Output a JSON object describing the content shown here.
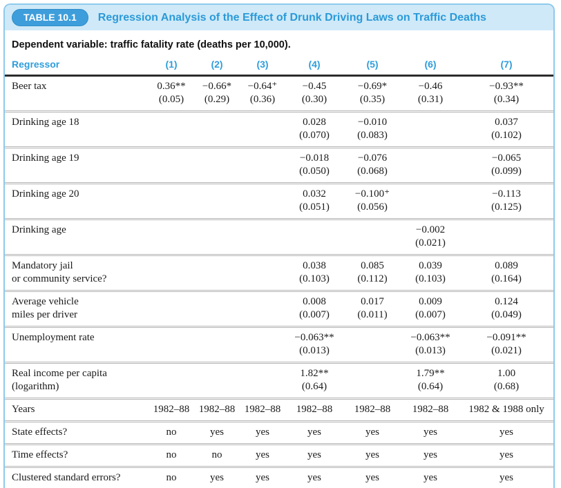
{
  "table": {
    "badge": "TABLE 10.1",
    "title": "Regression Analysis of the Effect of Drunk Driving Laws on Traffic Deaths",
    "dependent_variable": "Dependent variable: traffic fatality rate (deaths per 10,000).",
    "columns": [
      "Regressor",
      "(1)",
      "(2)",
      "(3)",
      "(4)",
      "(5)",
      "(6)",
      "(7)"
    ],
    "rows": [
      {
        "label": [
          "Beer tax"
        ],
        "cells": [
          [
            "0.36**",
            "(0.05)"
          ],
          [
            "−0.66*",
            "(0.29)"
          ],
          [
            "−0.64⁺",
            "(0.36)"
          ],
          [
            "−0.45",
            "(0.30)"
          ],
          [
            "−0.69*",
            "(0.35)"
          ],
          [
            "−0.46",
            "(0.31)"
          ],
          [
            "−0.93**",
            "(0.34)"
          ]
        ]
      },
      {
        "label": [
          "Drinking age 18"
        ],
        "cells": [
          null,
          null,
          null,
          [
            "0.028",
            "(0.070)"
          ],
          [
            "−0.010",
            "(0.083)"
          ],
          null,
          [
            "0.037",
            "(0.102)"
          ]
        ]
      },
      {
        "label": [
          "Drinking age 19"
        ],
        "cells": [
          null,
          null,
          null,
          [
            "−0.018",
            "(0.050)"
          ],
          [
            "−0.076",
            "(0.068)"
          ],
          null,
          [
            "−0.065",
            "(0.099)"
          ]
        ]
      },
      {
        "label": [
          "Drinking age 20"
        ],
        "cells": [
          null,
          null,
          null,
          [
            "0.032",
            "(0.051)"
          ],
          [
            "−0.100⁺",
            "(0.056)"
          ],
          null,
          [
            "−0.113",
            "(0.125)"
          ]
        ]
      },
      {
        "label": [
          "Drinking age"
        ],
        "cells": [
          null,
          null,
          null,
          null,
          null,
          [
            "−0.002",
            "(0.021)"
          ],
          null
        ]
      },
      {
        "label": [
          "Mandatory jail",
          "or community service?"
        ],
        "cells": [
          null,
          null,
          null,
          [
            "0.038",
            "(0.103)"
          ],
          [
            "0.085",
            "(0.112)"
          ],
          [
            "0.039",
            "(0.103)"
          ],
          [
            "0.089",
            "(0.164)"
          ]
        ]
      },
      {
        "label": [
          "Average vehicle",
          "miles per driver"
        ],
        "cells": [
          null,
          null,
          null,
          [
            "0.008",
            "(0.007)"
          ],
          [
            "0.017",
            "(0.011)"
          ],
          [
            "0.009",
            "(0.007)"
          ],
          [
            "0.124",
            "(0.049)"
          ]
        ]
      },
      {
        "label": [
          "Unemployment rate"
        ],
        "cells": [
          null,
          null,
          null,
          [
            "−0.063**",
            "(0.013)"
          ],
          null,
          [
            "−0.063**",
            "(0.013)"
          ],
          [
            "−0.091**",
            "(0.021)"
          ]
        ]
      },
      {
        "label": [
          "Real income per capita",
          "(logarithm)"
        ],
        "cells": [
          null,
          null,
          null,
          [
            "1.82**",
            "(0.64)"
          ],
          null,
          [
            "1.79**",
            "(0.64)"
          ],
          [
            "1.00",
            "(0.68)"
          ]
        ]
      },
      {
        "label": [
          "Years"
        ],
        "cells": [
          "1982–88",
          "1982–88",
          "1982–88",
          "1982–88",
          "1982–88",
          "1982–88",
          "1982 & 1988 only"
        ]
      },
      {
        "label": [
          "State effects?"
        ],
        "cells": [
          "no",
          "yes",
          "yes",
          "yes",
          "yes",
          "yes",
          "yes"
        ]
      },
      {
        "label": [
          "Time effects?"
        ],
        "cells": [
          "no",
          "no",
          "yes",
          "yes",
          "yes",
          "yes",
          "yes"
        ]
      },
      {
        "label": [
          "Clustered standard errors?"
        ],
        "cells": [
          "no",
          "yes",
          "yes",
          "yes",
          "yes",
          "yes",
          "yes"
        ]
      }
    ],
    "colors": {
      "strip_background": "#cfe9f8",
      "badge_background": "#3e9edb",
      "heading_blue": "#2b9ad8",
      "card_border": "#8ec9ec",
      "rule_dark": "#2b2b2b",
      "row_separator": "#b5b5b5"
    }
  }
}
